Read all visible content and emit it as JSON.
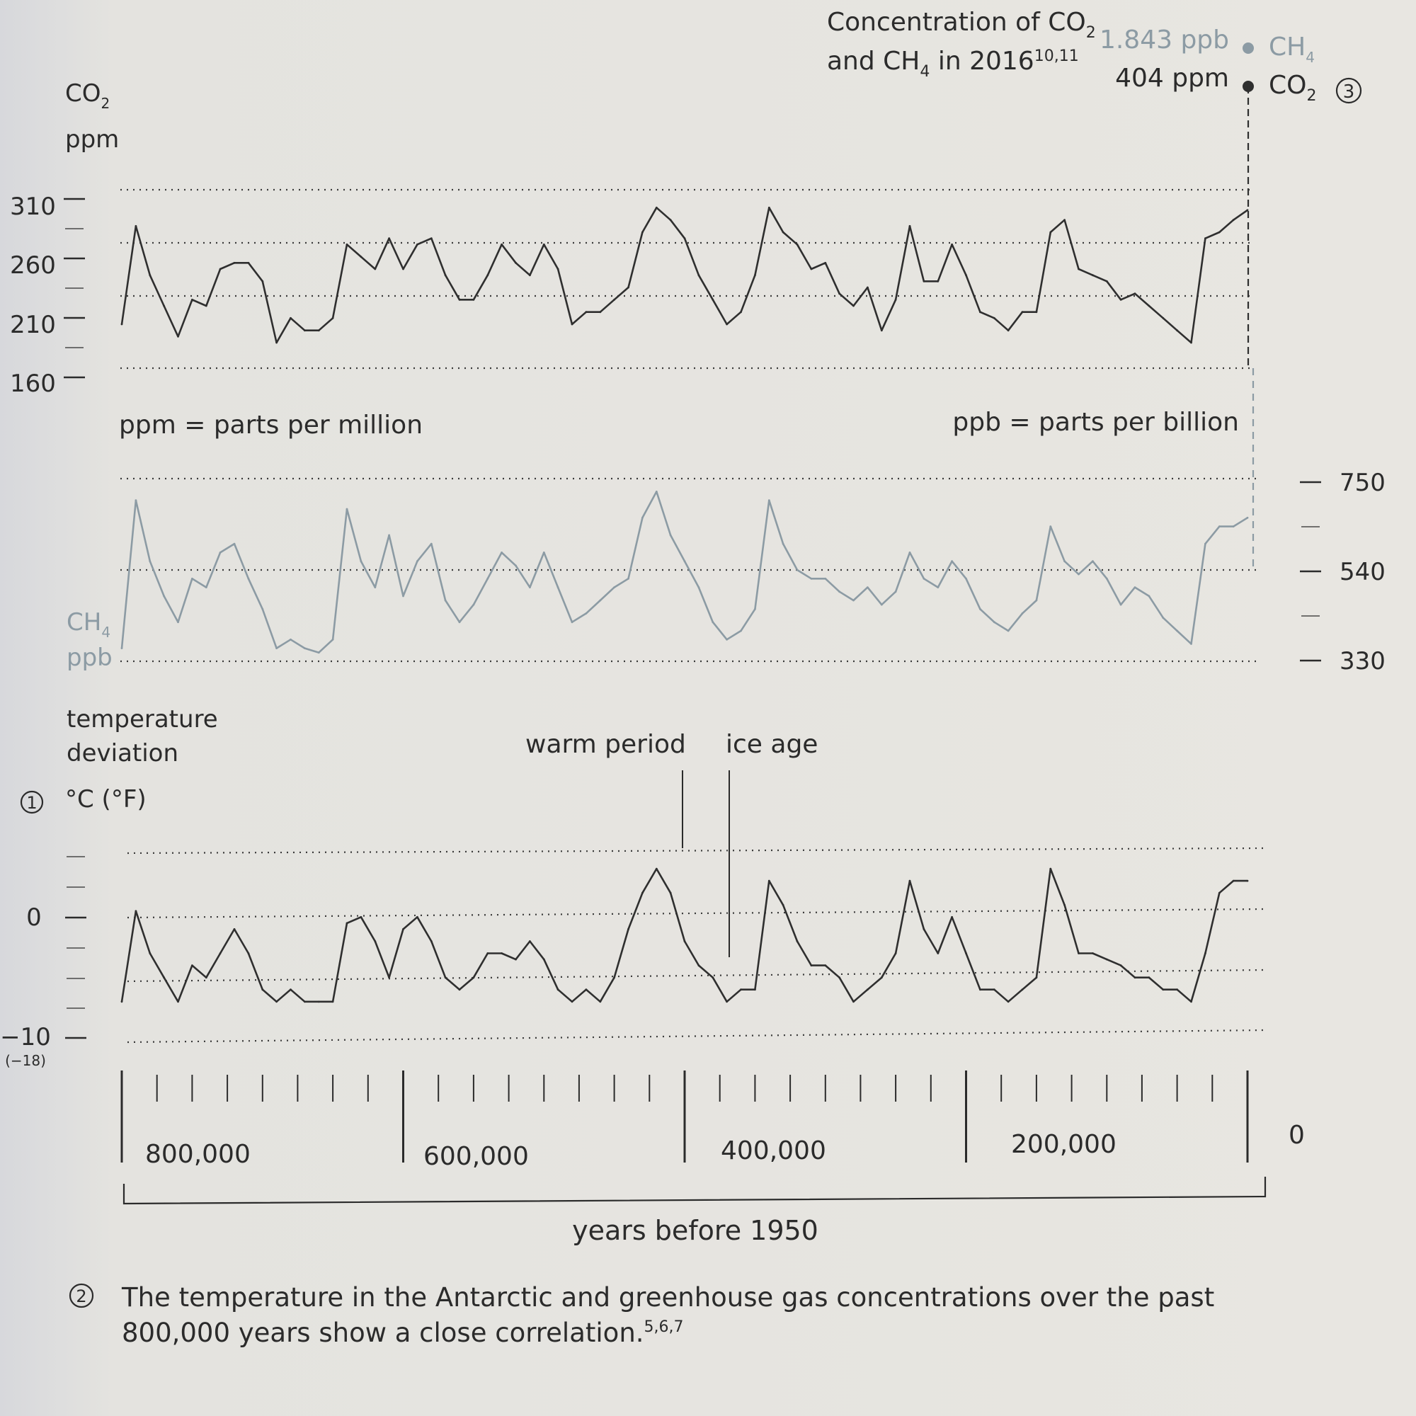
{
  "header": {
    "concentration_line1": "Concentration of CO",
    "concentration_sub1": "2",
    "concentration_line2_a": "and CH",
    "concentration_sub2": "4",
    "concentration_line2_b": " in 2016",
    "concentration_sup": "10,11",
    "ch4_value": "1.843 ppb",
    "co2_value": "404 ppm",
    "ch4_label": "CH",
    "ch4_label_sub": "4",
    "co2_label": "CO",
    "co2_label_sub": "2",
    "marker_3": "3"
  },
  "legend_notes": {
    "ppm": "ppm = parts per million",
    "ppb": "ppb = parts per billion"
  },
  "annotations": {
    "warm_period": "warm period",
    "ice_age": "ice age",
    "marker_1": "1",
    "marker_2": "2"
  },
  "x_axis": {
    "label": "years before 1950",
    "ticks": [
      "800,000",
      "600,000",
      "400,000",
      "200,000",
      "0"
    ]
  },
  "caption": {
    "line1": "The temperature in the Antarctic and greenhouse gas concentrations over the past",
    "line2": "800,000 years show a close correlation.",
    "sup": "5,6,7"
  },
  "colors": {
    "dark_series": "#2f2f2f",
    "ch4_series": "#8c9ba4",
    "background": "#e6e4df"
  },
  "chart_data": [
    {
      "type": "line",
      "panel": "co2",
      "ylabel": "CO",
      "ylabel_sub": "2",
      "ylabel_unit": "ppm",
      "yticks": [
        "310",
        "260",
        "210",
        "160"
      ],
      "ylim": [
        160,
        310
      ],
      "xlim": [
        800000,
        0
      ],
      "x": [
        800000,
        790000,
        780000,
        770000,
        760000,
        750000,
        740000,
        730000,
        720000,
        710000,
        700000,
        690000,
        680000,
        670000,
        660000,
        650000,
        640000,
        630000,
        620000,
        610000,
        600000,
        590000,
        580000,
        570000,
        560000,
        550000,
        540000,
        530000,
        520000,
        510000,
        500000,
        490000,
        480000,
        470000,
        460000,
        450000,
        440000,
        430000,
        420000,
        410000,
        400000,
        390000,
        380000,
        370000,
        360000,
        350000,
        340000,
        330000,
        320000,
        310000,
        300000,
        290000,
        280000,
        270000,
        260000,
        250000,
        240000,
        230000,
        220000,
        210000,
        200000,
        190000,
        180000,
        170000,
        160000,
        150000,
        140000,
        130000,
        120000,
        110000,
        100000,
        90000,
        80000,
        70000,
        60000,
        50000,
        40000,
        30000,
        20000,
        10000,
        0
      ],
      "values": [
        205,
        285,
        245,
        220,
        195,
        225,
        220,
        250,
        255,
        255,
        240,
        190,
        210,
        200,
        200,
        210,
        270,
        260,
        250,
        275,
        250,
        270,
        275,
        245,
        225,
        225,
        245,
        270,
        255,
        245,
        270,
        250,
        205,
        215,
        215,
        225,
        235,
        280,
        300,
        290,
        275,
        245,
        225,
        205,
        215,
        245,
        300,
        280,
        270,
        250,
        255,
        230,
        220,
        235,
        200,
        225,
        285,
        240,
        240,
        270,
        245,
        215,
        210,
        200,
        215,
        215,
        280,
        290,
        250,
        245,
        240,
        225,
        230,
        220,
        210,
        200,
        190,
        275,
        280,
        290,
        298
      ],
      "present_value": 404
    },
    {
      "type": "line",
      "panel": "ch4",
      "ylabel": "CH",
      "ylabel_sub": "4",
      "ylabel_unit": "ppb",
      "yticks": [
        "750",
        "540",
        "330"
      ],
      "ylim": [
        330,
        750
      ],
      "xlim": [
        800000,
        0
      ],
      "x": [
        800000,
        790000,
        780000,
        770000,
        760000,
        750000,
        740000,
        730000,
        720000,
        710000,
        700000,
        690000,
        680000,
        670000,
        660000,
        650000,
        640000,
        630000,
        620000,
        610000,
        600000,
        590000,
        580000,
        570000,
        560000,
        550000,
        540000,
        530000,
        520000,
        510000,
        500000,
        490000,
        480000,
        470000,
        460000,
        450000,
        440000,
        430000,
        420000,
        410000,
        400000,
        390000,
        380000,
        370000,
        360000,
        350000,
        340000,
        330000,
        320000,
        310000,
        300000,
        290000,
        280000,
        270000,
        260000,
        250000,
        240000,
        230000,
        220000,
        210000,
        200000,
        190000,
        180000,
        170000,
        160000,
        150000,
        140000,
        130000,
        120000,
        110000,
        100000,
        90000,
        80000,
        70000,
        60000,
        50000,
        40000,
        30000,
        20000,
        10000,
        0
      ],
      "values": [
        360,
        700,
        560,
        480,
        420,
        520,
        500,
        580,
        600,
        520,
        450,
        360,
        380,
        360,
        350,
        380,
        680,
        560,
        500,
        620,
        480,
        560,
        600,
        470,
        420,
        460,
        520,
        580,
        550,
        500,
        580,
        500,
        420,
        440,
        470,
        500,
        520,
        660,
        720,
        620,
        560,
        500,
        420,
        380,
        400,
        450,
        700,
        600,
        540,
        520,
        520,
        490,
        470,
        500,
        460,
        490,
        580,
        520,
        500,
        560,
        520,
        450,
        420,
        400,
        440,
        470,
        640,
        560,
        530,
        560,
        520,
        460,
        500,
        480,
        430,
        400,
        370,
        600,
        640,
        640,
        660
      ],
      "present_value": 1843
    },
    {
      "type": "line",
      "panel": "temperature",
      "ylabel": "temperature deviation",
      "ylabel_line1": "temperature",
      "ylabel_line2": "deviation",
      "ylabel_unit": "°C (°F)",
      "yticks": [
        "0",
        "−10"
      ],
      "ytick_sub": "(−18)",
      "ylim": [
        -10,
        5
      ],
      "xlim": [
        800000,
        0
      ],
      "x": [
        800000,
        790000,
        780000,
        770000,
        760000,
        750000,
        740000,
        730000,
        720000,
        710000,
        700000,
        690000,
        680000,
        670000,
        660000,
        650000,
        640000,
        630000,
        620000,
        610000,
        600000,
        590000,
        580000,
        570000,
        560000,
        550000,
        540000,
        530000,
        520000,
        510000,
        500000,
        490000,
        480000,
        470000,
        460000,
        450000,
        440000,
        430000,
        420000,
        410000,
        400000,
        390000,
        380000,
        370000,
        360000,
        350000,
        340000,
        330000,
        320000,
        310000,
        300000,
        290000,
        280000,
        270000,
        260000,
        250000,
        240000,
        230000,
        220000,
        210000,
        200000,
        190000,
        180000,
        170000,
        160000,
        150000,
        140000,
        130000,
        120000,
        110000,
        100000,
        90000,
        80000,
        70000,
        60000,
        50000,
        40000,
        30000,
        20000,
        10000,
        0
      ],
      "values": [
        -7,
        0.5,
        -3,
        -5,
        -7,
        -4,
        -5,
        -3,
        -1,
        -3,
        -6,
        -7,
        -6,
        -7,
        -7,
        -7,
        -0.5,
        0,
        -2,
        -5,
        -1,
        0,
        -2,
        -5,
        -6,
        -5,
        -3,
        -3,
        -3.5,
        -2,
        -3.5,
        -6,
        -7,
        -6,
        -7,
        -5,
        -1,
        2,
        4,
        2,
        -2,
        -4,
        -5,
        -7,
        -6,
        -6,
        3,
        1,
        -2,
        -4,
        -4,
        -5,
        -7,
        -6,
        -5,
        -3,
        3,
        -1,
        -3,
        0,
        -3,
        -6,
        -6,
        -7,
        -6,
        -5,
        4,
        1,
        -3,
        -3,
        -3.5,
        -4,
        -5,
        -5,
        -6,
        -6,
        -7,
        -3,
        2,
        3,
        3
      ]
    }
  ]
}
